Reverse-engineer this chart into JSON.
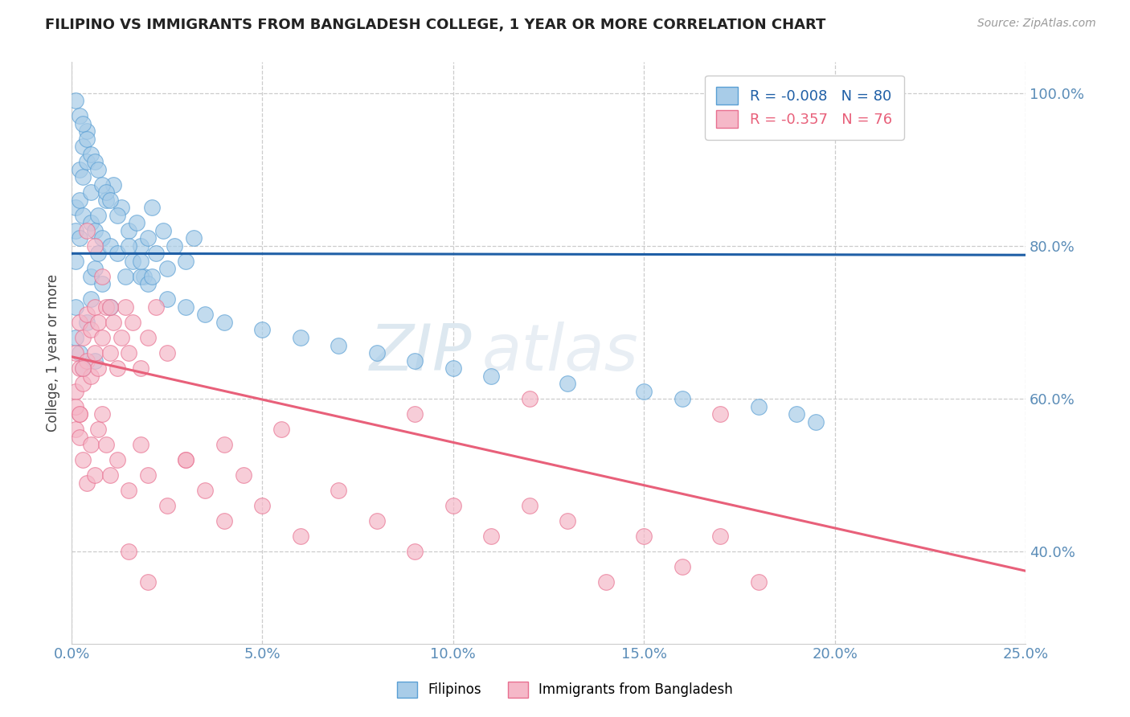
{
  "title": "FILIPINO VS IMMIGRANTS FROM BANGLADESH COLLEGE, 1 YEAR OR MORE CORRELATION CHART",
  "source_text": "Source: ZipAtlas.com",
  "ylabel": "College, 1 year or more",
  "xlim": [
    0.0,
    0.25
  ],
  "ylim": [
    0.28,
    1.04
  ],
  "xticks": [
    0.0,
    0.05,
    0.1,
    0.15,
    0.2,
    0.25
  ],
  "yticks": [
    0.4,
    0.6,
    0.8,
    1.0
  ],
  "legend_labels": [
    "Filipinos",
    "Immigrants from Bangladesh"
  ],
  "blue_R": -0.008,
  "blue_N": 80,
  "pink_R": -0.357,
  "pink_N": 76,
  "blue_color": "#a8cce8",
  "blue_edge_color": "#5a9fd4",
  "pink_color": "#f5b8c8",
  "pink_edge_color": "#e87090",
  "blue_line_color": "#1f5fa6",
  "pink_line_color": "#e8607a",
  "grid_color": "#cccccc",
  "tick_color": "#5b8db8",
  "watermark_color": "#dde8f0",
  "blue_line_y_at_0": 0.79,
  "blue_line_slope": -0.008,
  "pink_line_y_at_0": 0.655,
  "pink_line_y_at_025": 0.375,
  "blue_x": [
    0.001,
    0.001,
    0.001,
    0.002,
    0.002,
    0.002,
    0.003,
    0.003,
    0.003,
    0.004,
    0.004,
    0.005,
    0.005,
    0.005,
    0.006,
    0.006,
    0.007,
    0.007,
    0.008,
    0.008,
    0.009,
    0.01,
    0.01,
    0.011,
    0.012,
    0.013,
    0.014,
    0.015,
    0.016,
    0.017,
    0.018,
    0.019,
    0.02,
    0.021,
    0.022,
    0.024,
    0.025,
    0.027,
    0.03,
    0.032,
    0.001,
    0.002,
    0.003,
    0.004,
    0.005,
    0.006,
    0.007,
    0.008,
    0.009,
    0.01,
    0.012,
    0.015,
    0.018,
    0.02,
    0.025,
    0.03,
    0.035,
    0.04,
    0.05,
    0.06,
    0.07,
    0.08,
    0.09,
    0.1,
    0.11,
    0.13,
    0.15,
    0.16,
    0.18,
    0.19,
    0.195,
    0.001,
    0.001,
    0.002,
    0.003,
    0.004,
    0.005,
    0.006,
    0.018,
    0.021
  ],
  "blue_y": [
    0.85,
    0.82,
    0.78,
    0.9,
    0.86,
    0.81,
    0.93,
    0.89,
    0.84,
    0.95,
    0.91,
    0.87,
    0.83,
    0.76,
    0.82,
    0.77,
    0.84,
    0.79,
    0.81,
    0.75,
    0.86,
    0.8,
    0.72,
    0.88,
    0.79,
    0.85,
    0.76,
    0.82,
    0.78,
    0.83,
    0.8,
    0.76,
    0.81,
    0.85,
    0.79,
    0.82,
    0.77,
    0.8,
    0.78,
    0.81,
    0.99,
    0.97,
    0.96,
    0.94,
    0.92,
    0.91,
    0.9,
    0.88,
    0.87,
    0.86,
    0.84,
    0.8,
    0.76,
    0.75,
    0.73,
    0.72,
    0.71,
    0.7,
    0.69,
    0.68,
    0.67,
    0.66,
    0.65,
    0.64,
    0.63,
    0.62,
    0.61,
    0.6,
    0.59,
    0.58,
    0.57,
    0.68,
    0.72,
    0.66,
    0.64,
    0.7,
    0.73,
    0.65,
    0.78,
    0.76
  ],
  "pink_x": [
    0.001,
    0.001,
    0.001,
    0.002,
    0.002,
    0.002,
    0.003,
    0.003,
    0.004,
    0.004,
    0.005,
    0.005,
    0.006,
    0.006,
    0.007,
    0.007,
    0.008,
    0.009,
    0.01,
    0.011,
    0.012,
    0.013,
    0.014,
    0.015,
    0.016,
    0.018,
    0.02,
    0.022,
    0.025,
    0.001,
    0.002,
    0.003,
    0.004,
    0.005,
    0.006,
    0.007,
    0.008,
    0.009,
    0.01,
    0.012,
    0.015,
    0.018,
    0.02,
    0.025,
    0.03,
    0.035,
    0.04,
    0.045,
    0.05,
    0.06,
    0.07,
    0.08,
    0.09,
    0.1,
    0.11,
    0.12,
    0.13,
    0.14,
    0.15,
    0.16,
    0.17,
    0.18,
    0.17,
    0.12,
    0.09,
    0.055,
    0.04,
    0.03,
    0.02,
    0.015,
    0.01,
    0.008,
    0.006,
    0.004,
    0.003,
    0.002
  ],
  "pink_y": [
    0.66,
    0.61,
    0.56,
    0.7,
    0.64,
    0.58,
    0.68,
    0.62,
    0.71,
    0.65,
    0.69,
    0.63,
    0.72,
    0.66,
    0.7,
    0.64,
    0.68,
    0.72,
    0.66,
    0.7,
    0.64,
    0.68,
    0.72,
    0.66,
    0.7,
    0.64,
    0.68,
    0.72,
    0.66,
    0.59,
    0.55,
    0.52,
    0.49,
    0.54,
    0.5,
    0.56,
    0.58,
    0.54,
    0.5,
    0.52,
    0.48,
    0.54,
    0.5,
    0.46,
    0.52,
    0.48,
    0.44,
    0.5,
    0.46,
    0.42,
    0.48,
    0.44,
    0.4,
    0.46,
    0.42,
    0.46,
    0.44,
    0.36,
    0.42,
    0.38,
    0.42,
    0.36,
    0.58,
    0.6,
    0.58,
    0.56,
    0.54,
    0.52,
    0.36,
    0.4,
    0.72,
    0.76,
    0.8,
    0.82,
    0.64,
    0.58
  ]
}
